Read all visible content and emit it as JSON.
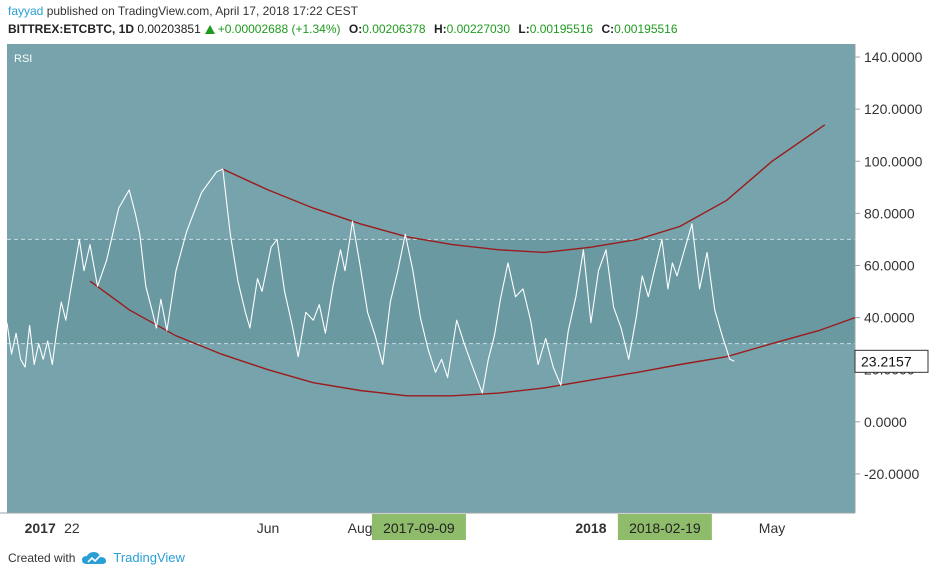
{
  "header": {
    "author": "fayyad",
    "published_text": "published on TradingView.com, April 17, 2018 17:22 CEST",
    "symbol": "BITTREX:ETCBTC, 1D",
    "price": "0.00203851",
    "change": "+0.00002688 (+1.34%)",
    "open_label": "O:",
    "open": "0.00206378",
    "high_label": "H:",
    "high": "0.00227030",
    "low_label": "L:",
    "low": "0.00195516",
    "close_label": "C:",
    "close": "0.00195516"
  },
  "footer": {
    "created_with": "Created with",
    "brand": "TradingView",
    "brand_icon": "cloud-icon"
  },
  "colors": {
    "panel_bg": "#76a3ac",
    "band_bg": "#6a99a2",
    "rsi_line": "#ffffff",
    "arc": "#9b1c1c",
    "date_badge": "#8fbc6a",
    "up": "#1e9b1e"
  },
  "chart_data": {
    "type": "line",
    "title": "RSI",
    "ylim": [
      -35,
      145
    ],
    "yticks": [
      {
        "value": 140,
        "label": "140.0000"
      },
      {
        "value": 120,
        "label": "120.0000"
      },
      {
        "value": 100,
        "label": "100.0000"
      },
      {
        "value": 80,
        "label": "80.0000"
      },
      {
        "value": 60,
        "label": "60.0000"
      },
      {
        "value": 40,
        "label": "40.0000"
      },
      {
        "value": 20,
        "label": "20.0000"
      },
      {
        "value": 0,
        "label": "0.0000"
      },
      {
        "value": -20,
        "label": "-20.0000"
      }
    ],
    "xlim": [
      "2016-12-10",
      "2018-06-25"
    ],
    "xticks": [
      {
        "date": "2017-01-01",
        "label": "2017"
      },
      {
        "date": "2017-01-22",
        "label": "22"
      },
      {
        "date": "2017-06-01",
        "label": "Jun"
      },
      {
        "date": "2017-08-01",
        "label": "Aug"
      },
      {
        "date": "2018-01-01",
        "label": "2018"
      },
      {
        "date": "2018-05-01",
        "label": "May"
      }
    ],
    "date_badges": [
      "2017-09-09",
      "2018-02-19"
    ],
    "current_value_label": "23.2157",
    "current_value": 23.2157,
    "bands": {
      "upper": 70,
      "lower": 30
    },
    "rsi_series": [
      [
        "2016-12-10",
        38
      ],
      [
        "2016-12-13",
        26
      ],
      [
        "2016-12-16",
        34
      ],
      [
        "2016-12-19",
        24
      ],
      [
        "2016-12-22",
        21
      ],
      [
        "2016-12-25",
        37
      ],
      [
        "2016-12-28",
        22
      ],
      [
        "2016-12-31",
        30
      ],
      [
        "2017-01-03",
        24
      ],
      [
        "2017-01-06",
        31
      ],
      [
        "2017-01-09",
        22
      ],
      [
        "2017-01-12",
        35
      ],
      [
        "2017-01-15",
        46
      ],
      [
        "2017-01-18",
        39
      ],
      [
        "2017-01-21",
        50
      ],
      [
        "2017-01-24",
        60
      ],
      [
        "2017-01-27",
        70
      ],
      [
        "2017-01-30",
        58
      ],
      [
        "2017-02-03",
        68
      ],
      [
        "2017-02-08",
        52
      ],
      [
        "2017-02-14",
        62
      ],
      [
        "2017-02-22",
        82
      ],
      [
        "2017-03-01",
        89
      ],
      [
        "2017-03-05",
        80
      ],
      [
        "2017-03-08",
        72
      ],
      [
        "2017-03-12",
        52
      ],
      [
        "2017-03-16",
        43
      ],
      [
        "2017-03-19",
        36
      ],
      [
        "2017-03-22",
        47
      ],
      [
        "2017-03-26",
        35
      ],
      [
        "2017-04-01",
        58
      ],
      [
        "2017-04-08",
        73
      ],
      [
        "2017-04-18",
        88
      ],
      [
        "2017-04-28",
        96
      ],
      [
        "2017-05-02",
        97
      ],
      [
        "2017-05-07",
        72
      ],
      [
        "2017-05-12",
        54
      ],
      [
        "2017-05-17",
        42
      ],
      [
        "2017-05-20",
        36
      ],
      [
        "2017-05-25",
        55
      ],
      [
        "2017-05-28",
        50
      ],
      [
        "2017-06-03",
        67
      ],
      [
        "2017-06-07",
        70
      ],
      [
        "2017-06-12",
        50
      ],
      [
        "2017-06-17",
        37
      ],
      [
        "2017-06-21",
        25
      ],
      [
        "2017-06-26",
        42
      ],
      [
        "2017-07-01",
        39
      ],
      [
        "2017-07-05",
        45
      ],
      [
        "2017-07-09",
        34
      ],
      [
        "2017-07-14",
        52
      ],
      [
        "2017-07-19",
        66
      ],
      [
        "2017-07-22",
        58
      ],
      [
        "2017-07-27",
        77
      ],
      [
        "2017-08-01",
        60
      ],
      [
        "2017-08-06",
        42
      ],
      [
        "2017-08-11",
        33
      ],
      [
        "2017-08-16",
        22
      ],
      [
        "2017-08-21",
        46
      ],
      [
        "2017-08-26",
        58
      ],
      [
        "2017-08-31",
        72
      ],
      [
        "2017-09-05",
        58
      ],
      [
        "2017-09-10",
        40
      ],
      [
        "2017-09-15",
        28
      ],
      [
        "2017-09-20",
        19
      ],
      [
        "2017-09-24",
        24
      ],
      [
        "2017-09-28",
        17
      ],
      [
        "2017-10-04",
        39
      ],
      [
        "2017-10-09",
        30
      ],
      [
        "2017-10-14",
        22
      ],
      [
        "2017-10-21",
        11
      ],
      [
        "2017-10-25",
        24
      ],
      [
        "2017-10-29",
        33
      ],
      [
        "2017-11-02",
        47
      ],
      [
        "2017-11-07",
        61
      ],
      [
        "2017-11-12",
        48
      ],
      [
        "2017-11-17",
        51
      ],
      [
        "2017-11-22",
        39
      ],
      [
        "2017-11-27",
        22
      ],
      [
        "2017-12-02",
        32
      ],
      [
        "2017-12-07",
        21
      ],
      [
        "2017-12-12",
        14
      ],
      [
        "2017-12-17",
        35
      ],
      [
        "2017-12-22",
        48
      ],
      [
        "2017-12-27",
        66
      ],
      [
        "2018-01-01",
        38
      ],
      [
        "2018-01-06",
        58
      ],
      [
        "2018-01-11",
        66
      ],
      [
        "2018-01-16",
        44
      ],
      [
        "2018-01-21",
        36
      ],
      [
        "2018-01-26",
        24
      ],
      [
        "2018-01-31",
        40
      ],
      [
        "2018-02-04",
        56
      ],
      [
        "2018-02-08",
        48
      ],
      [
        "2018-02-12",
        58
      ],
      [
        "2018-02-17",
        70
      ],
      [
        "2018-02-21",
        51
      ],
      [
        "2018-02-24",
        61
      ],
      [
        "2018-02-27",
        56
      ],
      [
        "2018-03-04",
        66
      ],
      [
        "2018-03-09",
        76
      ],
      [
        "2018-03-14",
        51
      ],
      [
        "2018-03-19",
        65
      ],
      [
        "2018-03-24",
        43
      ],
      [
        "2018-03-29",
        33
      ],
      [
        "2018-04-03",
        24
      ],
      [
        "2018-04-06",
        23.2157
      ]
    ],
    "upper_arc": [
      [
        "2017-05-02",
        97
      ],
      [
        "2017-06-01",
        89
      ],
      [
        "2017-07-01",
        82
      ],
      [
        "2017-08-01",
        76
      ],
      [
        "2017-09-01",
        71
      ],
      [
        "2017-10-01",
        68
      ],
      [
        "2017-11-01",
        66
      ],
      [
        "2017-12-01",
        65
      ],
      [
        "2018-01-01",
        67
      ],
      [
        "2018-02-01",
        70
      ],
      [
        "2018-03-01",
        75
      ],
      [
        "2018-04-01",
        85
      ],
      [
        "2018-05-01",
        100
      ],
      [
        "2018-06-05",
        114
      ]
    ],
    "lower_arc": [
      [
        "2017-02-03",
        54
      ],
      [
        "2017-03-01",
        43
      ],
      [
        "2017-04-01",
        33
      ],
      [
        "2017-05-01",
        26
      ],
      [
        "2017-06-01",
        20
      ],
      [
        "2017-07-01",
        15
      ],
      [
        "2017-08-01",
        12
      ],
      [
        "2017-09-01",
        10
      ],
      [
        "2017-10-01",
        10
      ],
      [
        "2017-11-01",
        11
      ],
      [
        "2017-12-01",
        13
      ],
      [
        "2018-01-01",
        16
      ],
      [
        "2018-02-01",
        19
      ],
      [
        "2018-03-01",
        22
      ],
      [
        "2018-04-01",
        25
      ],
      [
        "2018-05-01",
        30
      ],
      [
        "2018-06-01",
        35
      ],
      [
        "2018-06-25",
        40
      ]
    ]
  }
}
